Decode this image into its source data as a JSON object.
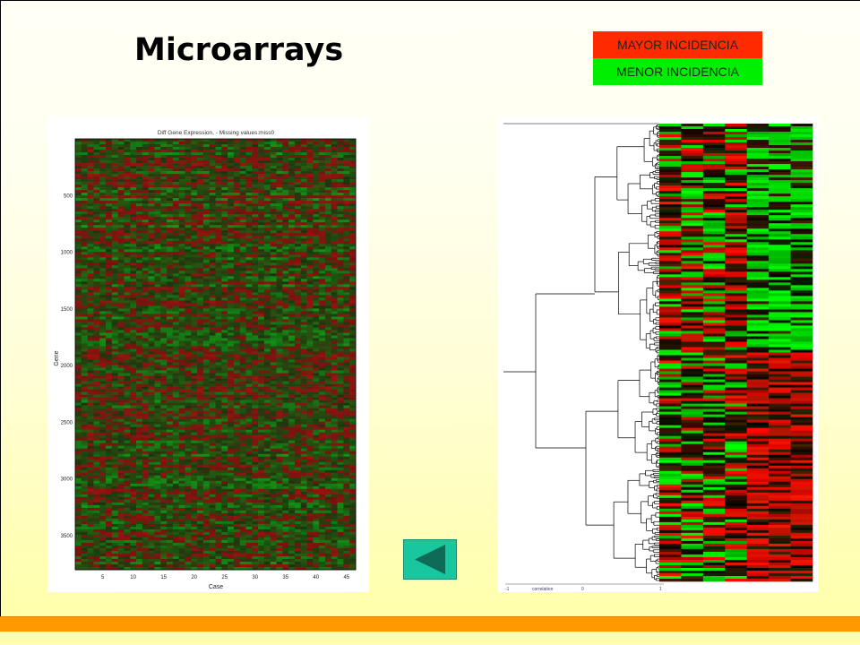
{
  "slide": {
    "title": "Microarrays",
    "legend": {
      "high": {
        "label": "MAYOR INCIDENCIA",
        "color": "#ff2a00"
      },
      "low": {
        "label": "MENOR INCIDENCIA",
        "color": "#00ee00"
      }
    }
  },
  "heatmap_left": {
    "title": "Diff Gene Expression, - Missing values:miss0",
    "ylabel": "Gene",
    "xlabel": "Case",
    "yticks": [
      "500",
      "1000",
      "1500",
      "2000",
      "2500",
      "3000",
      "3500"
    ],
    "xticks": [
      "5",
      "10",
      "15",
      "20",
      "25",
      "30",
      "35",
      "40",
      "45"
    ]
  },
  "heatmap_right": {
    "axis_labels": [
      "-1",
      "correlation",
      "0",
      "1"
    ]
  },
  "nav": {
    "back_icon": "triangle-left-icon"
  }
}
